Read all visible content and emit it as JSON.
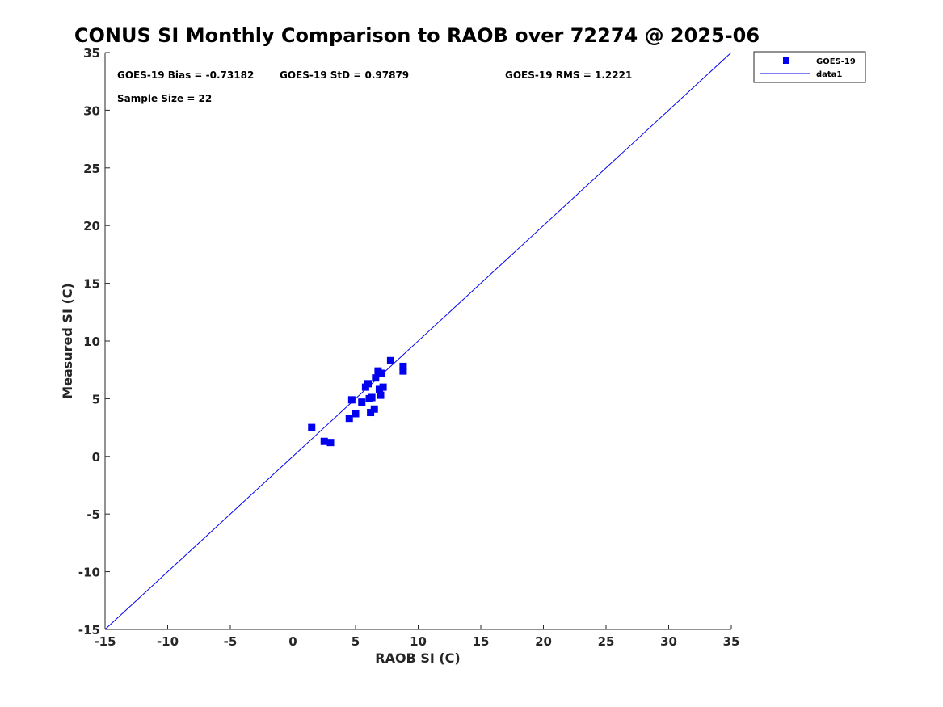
{
  "chart_data": {
    "type": "scatter",
    "title": "CONUS SI Monthly Comparison to RAOB over 72274 @ 2025-06",
    "xlabel": "RAOB SI (C)",
    "ylabel": "Measured SI (C)",
    "xlim": [
      -15,
      35
    ],
    "ylim": [
      -15,
      35
    ],
    "xticks": [
      -15,
      -10,
      -5,
      0,
      5,
      10,
      15,
      20,
      25,
      30,
      35
    ],
    "yticks": [
      -15,
      -10,
      -5,
      0,
      5,
      10,
      15,
      20,
      25,
      30,
      35
    ],
    "grid": false,
    "legend_position": "top-right outside",
    "annotations": {
      "bias": "GOES-19 Bias = -0.73182",
      "std": "GOES-19 StD = 0.97879",
      "rms": "GOES-19 RMS = 1.2221",
      "sample": "Sample Size = 22"
    },
    "series": [
      {
        "name": "GOES-19",
        "kind": "scatter",
        "marker": "square",
        "color": "#0000ee",
        "x": [
          1.5,
          2.5,
          3.0,
          4.5,
          4.7,
          5.0,
          5.5,
          5.8,
          6.0,
          6.1,
          6.2,
          6.3,
          6.5,
          6.6,
          6.8,
          6.9,
          7.0,
          7.1,
          7.2,
          7.8,
          8.8,
          8.8
        ],
        "y": [
          2.5,
          1.3,
          1.2,
          3.3,
          4.9,
          3.7,
          4.7,
          6.0,
          6.3,
          5.0,
          3.8,
          5.1,
          4.1,
          6.8,
          7.4,
          5.8,
          5.3,
          7.2,
          6.0,
          8.3,
          7.8,
          7.4
        ]
      },
      {
        "name": "data1",
        "kind": "line",
        "color": "#0000ee",
        "x": [
          -15,
          35
        ],
        "y": [
          -15,
          35
        ]
      }
    ]
  }
}
